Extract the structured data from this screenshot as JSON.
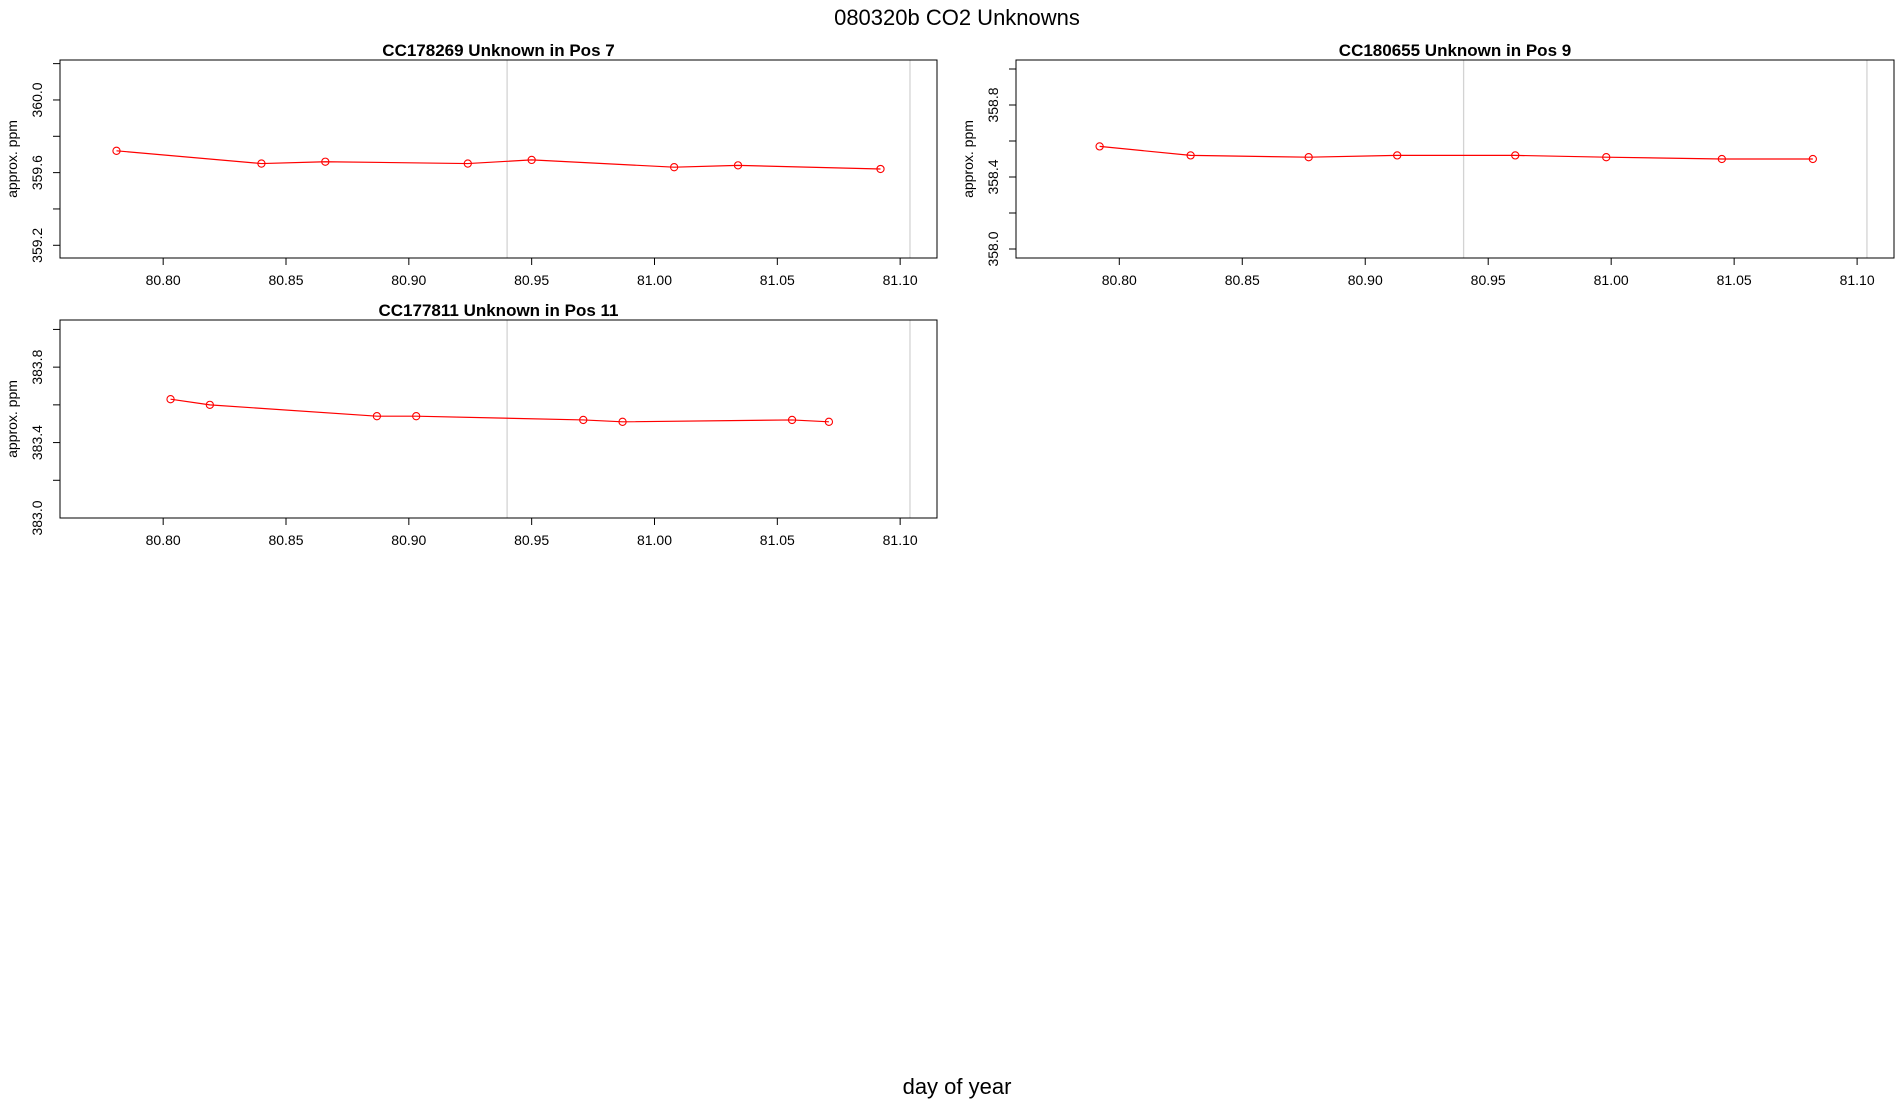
{
  "figure": {
    "title": "080320b  CO2 Unknowns",
    "xlabel": "day of year"
  },
  "colors": {
    "series": "#ff0000",
    "vline": "#d3d3d3",
    "frame": "#000000"
  },
  "chart_data": [
    {
      "type": "line",
      "title": "CC178269    Unknown in Pos 7",
      "ylabel": "approx. ppm",
      "xlim": [
        80.758,
        81.115
      ],
      "ylim": [
        359.13,
        360.22
      ],
      "xticks": [
        80.8,
        80.85,
        80.9,
        80.95,
        81.0,
        81.05,
        81.1
      ],
      "xtick_labels": [
        "80.80",
        "80.85",
        "80.90",
        "80.95",
        "81.00",
        "81.05",
        "81.10"
      ],
      "yticks": [
        359.2,
        359.6,
        360.0
      ],
      "ytick_labels": [
        "359.2",
        "359.6",
        "360.0"
      ],
      "vlines": [
        80.94,
        81.104
      ],
      "series": [
        {
          "x": [
            80.781,
            80.84,
            80.866,
            80.924,
            80.95,
            81.008,
            81.034,
            81.092
          ],
          "values": [
            359.72,
            359.65,
            359.66,
            359.65,
            359.67,
            359.63,
            359.64,
            359.62
          ]
        }
      ]
    },
    {
      "type": "line",
      "title": "CC180655    Unknown in Pos 9",
      "ylabel": "approx. ppm",
      "xlim": [
        80.758,
        81.115
      ],
      "ylim": [
        357.95,
        359.05
      ],
      "xticks": [
        80.8,
        80.85,
        80.9,
        80.95,
        81.0,
        81.05,
        81.1
      ],
      "xtick_labels": [
        "80.80",
        "80.85",
        "80.90",
        "80.95",
        "81.00",
        "81.05",
        "81.10"
      ],
      "yticks": [
        358.0,
        358.4,
        358.8
      ],
      "ytick_labels": [
        "358.0",
        "358.4",
        "358.8"
      ],
      "vlines": [
        80.94,
        81.104
      ],
      "series": [
        {
          "x": [
            80.792,
            80.829,
            80.877,
            80.913,
            80.961,
            80.998,
            81.045,
            81.082
          ],
          "values": [
            358.57,
            358.52,
            358.51,
            358.52,
            358.52,
            358.51,
            358.5,
            358.5
          ]
        }
      ]
    },
    {
      "type": "line",
      "title": "CC177811    Unknown in Pos 11",
      "ylabel": "approx. ppm",
      "xlim": [
        80.758,
        81.115
      ],
      "ylim": [
        383.0,
        384.05
      ],
      "xticks": [
        80.8,
        80.85,
        80.9,
        80.95,
        81.0,
        81.05,
        81.1
      ],
      "xtick_labels": [
        "80.80",
        "80.85",
        "80.90",
        "80.95",
        "81.00",
        "81.05",
        "81.10"
      ],
      "yticks": [
        383.0,
        383.4,
        383.8
      ],
      "ytick_labels": [
        "383.0",
        "383.4",
        "383.8"
      ],
      "vlines": [
        80.94,
        81.104
      ],
      "series": [
        {
          "x": [
            80.803,
            80.819,
            80.887,
            80.903,
            80.971,
            80.987,
            81.056,
            81.071
          ],
          "values": [
            383.63,
            383.6,
            383.54,
            383.54,
            383.52,
            383.51,
            383.52,
            383.51
          ]
        }
      ]
    }
  ]
}
